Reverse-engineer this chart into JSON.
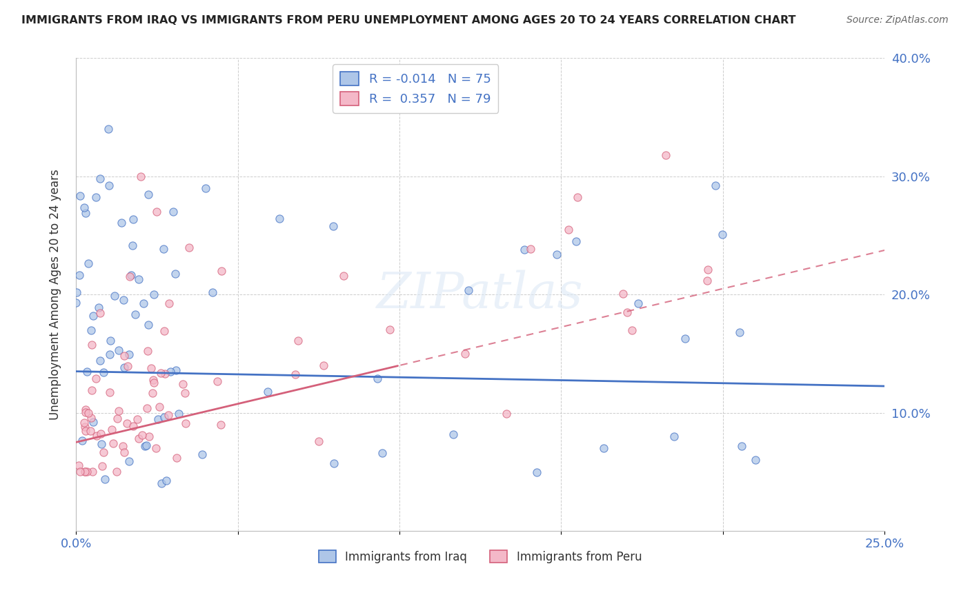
{
  "title": "IMMIGRANTS FROM IRAQ VS IMMIGRANTS FROM PERU UNEMPLOYMENT AMONG AGES 20 TO 24 YEARS CORRELATION CHART",
  "source": "Source: ZipAtlas.com",
  "ylabel": "Unemployment Among Ages 20 to 24 years",
  "xlim": [
    0.0,
    0.25
  ],
  "ylim": [
    0.0,
    0.4
  ],
  "xtick_positions": [
    0.0,
    0.05,
    0.1,
    0.15,
    0.2,
    0.25
  ],
  "xticklabels": [
    "0.0%",
    "",
    "",
    "",
    "",
    "25.0%"
  ],
  "ytick_positions": [
    0.0,
    0.1,
    0.2,
    0.3,
    0.4
  ],
  "yticklabels": [
    "",
    "10.0%",
    "20.0%",
    "30.0%",
    "40.0%"
  ],
  "legend_top_labels": [
    "R = -0.014   N = 75",
    "R =  0.357   N = 79"
  ],
  "legend_bottom_labels": [
    "Immigrants from Iraq",
    "Immigrants from Peru"
  ],
  "color_iraq_face": "#aec6e8",
  "color_iraq_edge": "#4472c4",
  "color_peru_face": "#f4b8c8",
  "color_peru_edge": "#d4607a",
  "color_iraq_line": "#4472c4",
  "color_peru_line": "#d4607a",
  "watermark": "ZIPatlas",
  "iraq_R": -0.014,
  "peru_R": 0.357,
  "iraq_N": 75,
  "peru_N": 79
}
